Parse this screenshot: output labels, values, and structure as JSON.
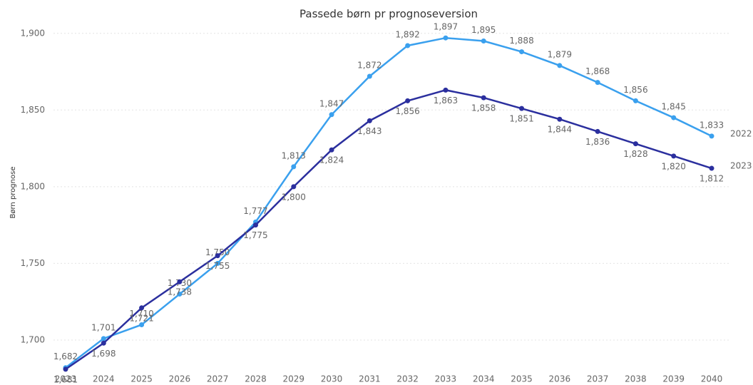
{
  "chart_data": {
    "type": "line",
    "title": "Passede børn pr prognoseversion",
    "y_label": "Børn prognose",
    "categories": [
      "2023",
      "2024",
      "2025",
      "2026",
      "2027",
      "2028",
      "2029",
      "2030",
      "2031",
      "2032",
      "2033",
      "2034",
      "2035",
      "2036",
      "2037",
      "2038",
      "2039",
      "2040"
    ],
    "series": [
      {
        "name": "2022",
        "color": "#3aa0ee",
        "values": [
          1682,
          1701,
          1710,
          1730,
          1750,
          1777,
          1813,
          1847,
          1872,
          1892,
          1897,
          1895,
          1888,
          1879,
          1868,
          1856,
          1845,
          1833
        ],
        "value_labels": [
          "1,682",
          "1,701",
          "1,710",
          "1,730",
          "1,750",
          "1,777",
          "1,813",
          "1,847",
          "1,872",
          "1,892",
          "1,897",
          "1,895",
          "1,888",
          "1,879",
          "1,868",
          "1,856",
          "1,845",
          "1,833"
        ]
      },
      {
        "name": "2023",
        "color": "#2b2f9e",
        "values": [
          1681,
          1698,
          1721,
          1738,
          1755,
          1775,
          1800,
          1824,
          1843,
          1856,
          1863,
          1858,
          1851,
          1844,
          1836,
          1828,
          1820,
          1812
        ],
        "value_labels": [
          "1,681",
          "1,698",
          "1,721",
          "1,738",
          "1,755",
          "1,775",
          "1,800",
          "1,824",
          "1,843",
          "1,856",
          "1,863",
          "1,858",
          "1,851",
          "1,844",
          "1,836",
          "1,828",
          "1,820",
          "1,812"
        ]
      }
    ],
    "ylim": [
      1680,
      1905
    ],
    "yticks": [
      {
        "value": 1700,
        "label": "1,700"
      },
      {
        "value": 1750,
        "label": "1,750"
      },
      {
        "value": 1800,
        "label": "1,800"
      },
      {
        "value": 1850,
        "label": "1,850"
      },
      {
        "value": 1900,
        "label": "1,900"
      }
    ],
    "grid": true
  }
}
